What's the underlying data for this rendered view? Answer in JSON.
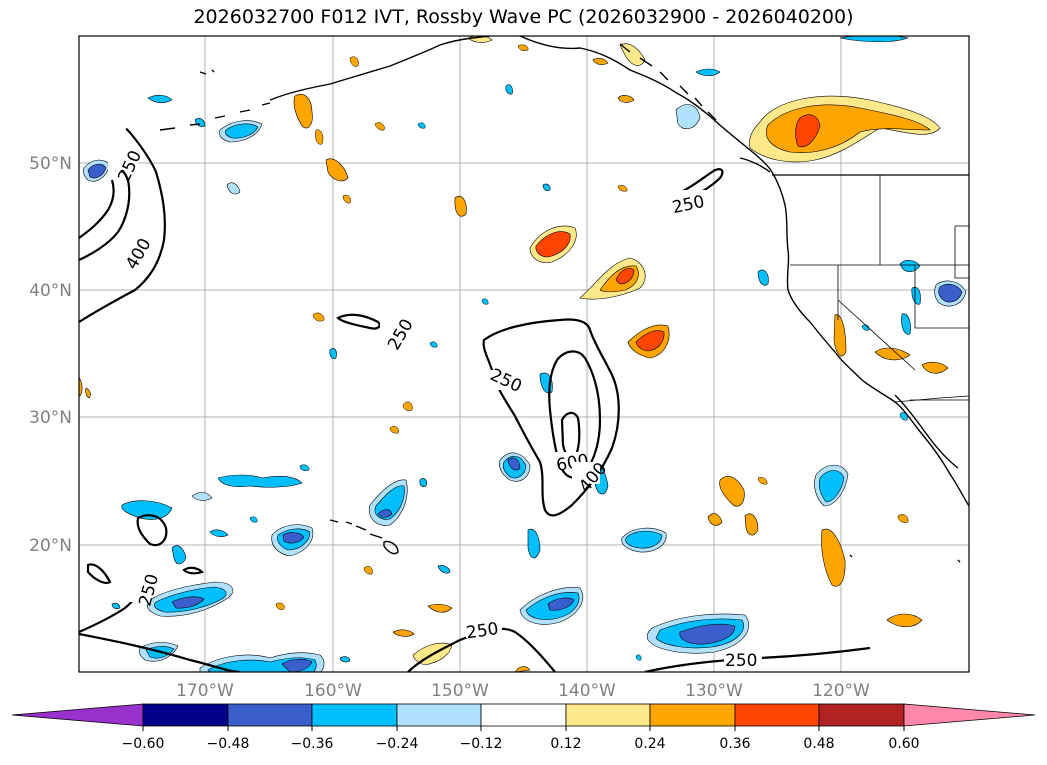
{
  "title": "2026032700 F012 IVT, Rossby Wave PC (2026032900 - 2026040200)",
  "map": {
    "lat_labels": [
      "50°N",
      "40°N",
      "30°N",
      "20°N"
    ],
    "lon_labels": [
      "170°W",
      "160°W",
      "150°W",
      "140°W",
      "130°W",
      "120°W"
    ],
    "contour_labels": [
      "250",
      "400",
      "250",
      "250",
      "250",
      "600",
      "400",
      "250",
      "250",
      "250"
    ]
  },
  "colorbar": {
    "ticks": [
      "−0.60",
      "−0.48",
      "−0.36",
      "−0.24",
      "−0.12",
      "0.12",
      "0.24",
      "0.36",
      "0.48",
      "0.60"
    ],
    "colors": [
      "#9932cc",
      "#00008b",
      "#3a5fcd",
      "#00bfff",
      "#b0e2ff",
      "#ffffff",
      "#ffe98a",
      "#ffa500",
      "#ff4500",
      "#b22222",
      "#ff88aa"
    ]
  }
}
